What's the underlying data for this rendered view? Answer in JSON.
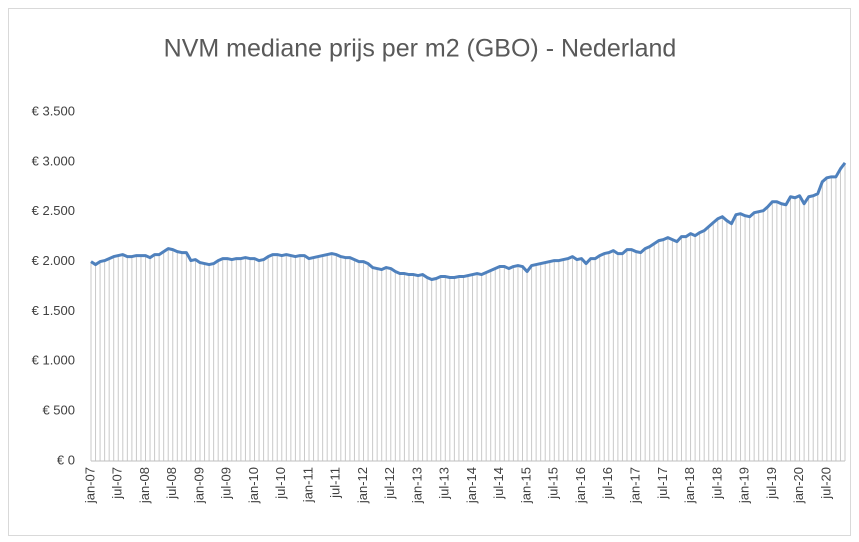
{
  "chart_data": {
    "type": "line",
    "title": "NVM mediane prijs per m2 (GBO) - Nederland",
    "categories": [
      "jan-07",
      null,
      null,
      null,
      null,
      null,
      "jul-07",
      null,
      null,
      null,
      null,
      null,
      "jan-08",
      null,
      null,
      null,
      null,
      null,
      "jul-08",
      null,
      null,
      null,
      null,
      null,
      "jan-09",
      null,
      null,
      null,
      null,
      null,
      "jul-09",
      null,
      null,
      null,
      null,
      null,
      "jan-10",
      null,
      null,
      null,
      null,
      null,
      "jul-10",
      null,
      null,
      null,
      null,
      null,
      "jan-11",
      null,
      null,
      null,
      null,
      null,
      "jul-11",
      null,
      null,
      null,
      null,
      null,
      "jan-12",
      null,
      null,
      null,
      null,
      null,
      "jul-12",
      null,
      null,
      null,
      null,
      null,
      "jan-13",
      null,
      null,
      null,
      null,
      null,
      "jul-13",
      null,
      null,
      null,
      null,
      null,
      "jan-14",
      null,
      null,
      null,
      null,
      null,
      "jul-14",
      null,
      null,
      null,
      null,
      null,
      "jan-15",
      null,
      null,
      null,
      null,
      null,
      "jul-15",
      null,
      null,
      null,
      null,
      null,
      "jan-16",
      null,
      null,
      null,
      null,
      null,
      "jul-16",
      null,
      null,
      null,
      null,
      null,
      "jan-17",
      null,
      null,
      null,
      null,
      null,
      "jul-17",
      null,
      null,
      null,
      null,
      null,
      "jan-18",
      null,
      null,
      null,
      null,
      null,
      "jul-18",
      null,
      null,
      null,
      null,
      null,
      "jan-19",
      null,
      null,
      null,
      null,
      null,
      "jul-19",
      null,
      null,
      null,
      null,
      null,
      "jan-20",
      null,
      null,
      null,
      null,
      null,
      "jul-20",
      null,
      null,
      null,
      null
    ],
    "values": [
      2000,
      1970,
      2000,
      2010,
      2030,
      2050,
      2060,
      2070,
      2050,
      2050,
      2060,
      2060,
      2060,
      2040,
      2070,
      2070,
      2100,
      2130,
      2120,
      2100,
      2090,
      2090,
      2010,
      2020,
      1990,
      1980,
      1970,
      1980,
      2010,
      2030,
      2030,
      2020,
      2030,
      2030,
      2040,
      2030,
      2030,
      2010,
      2020,
      2050,
      2070,
      2070,
      2060,
      2070,
      2060,
      2050,
      2060,
      2060,
      2030,
      2040,
      2050,
      2060,
      2070,
      2080,
      2070,
      2050,
      2040,
      2040,
      2020,
      2000,
      2000,
      1980,
      1940,
      1930,
      1920,
      1940,
      1930,
      1900,
      1880,
      1880,
      1870,
      1870,
      1860,
      1870,
      1840,
      1820,
      1830,
      1850,
      1850,
      1840,
      1840,
      1850,
      1850,
      1860,
      1870,
      1880,
      1870,
      1890,
      1910,
      1930,
      1950,
      1950,
      1930,
      1950,
      1960,
      1950,
      1900,
      1960,
      1970,
      1980,
      1990,
      2000,
      2010,
      2010,
      2020,
      2030,
      2050,
      2020,
      2030,
      1980,
      2030,
      2030,
      2060,
      2080,
      2090,
      2110,
      2080,
      2080,
      2120,
      2120,
      2100,
      2090,
      2130,
      2150,
      2180,
      2210,
      2220,
      2240,
      2220,
      2200,
      2250,
      2250,
      2280,
      2260,
      2290,
      2310,
      2350,
      2390,
      2430,
      2450,
      2410,
      2380,
      2470,
      2480,
      2460,
      2450,
      2490,
      2500,
      2510,
      2550,
      2600,
      2600,
      2580,
      2570,
      2650,
      2640,
      2660,
      2580,
      2650,
      2660,
      2680,
      2800,
      2840,
      2850,
      2850,
      2930,
      2990
    ],
    "color": "#4f81bd",
    "drop_line_color": "#c9c9c9",
    "ylim": [
      0,
      3500
    ],
    "yticks": [
      {
        "value": 0,
        "label": "€ 0"
      },
      {
        "value": 500,
        "label": "€ 500"
      },
      {
        "value": 1000,
        "label": "€ 1.000"
      },
      {
        "value": 1500,
        "label": "€ 1.500"
      },
      {
        "value": 2000,
        "label": "€ 2.000"
      },
      {
        "value": 2500,
        "label": "€ 2.500"
      },
      {
        "value": 3000,
        "label": "€ 3.000"
      },
      {
        "value": 3500,
        "label": "€ 3.500"
      }
    ],
    "grid": false
  }
}
